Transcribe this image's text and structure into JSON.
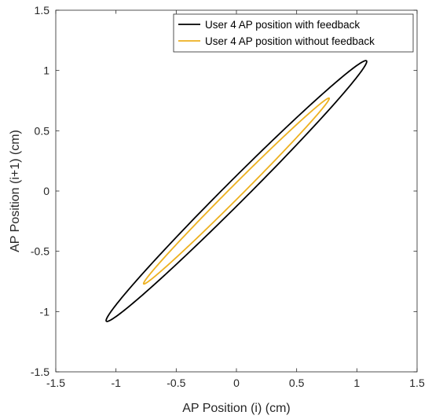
{
  "chart_data": {
    "type": "line",
    "xlabel": "AP Position (i) (cm)",
    "ylabel": "AP Position (i+1) (cm)",
    "xlim": [
      -1.5,
      1.5
    ],
    "ylim": [
      -1.5,
      1.5
    ],
    "xticks": [
      -1.5,
      -1,
      -0.5,
      0,
      0.5,
      1,
      1.5
    ],
    "yticks": [
      -1.5,
      -1,
      -0.5,
      0,
      0.5,
      1,
      1.5
    ],
    "xtick_labels": [
      "-1.5",
      "-1",
      "-0.5",
      "0",
      "0.5",
      "1",
      "1.5"
    ],
    "ytick_labels": [
      "-1.5",
      "-1",
      "-0.5",
      "0",
      "0.5",
      "1",
      "1.5"
    ],
    "grid": false,
    "legend_position": "top-right",
    "series": [
      {
        "name": "User 4 AP position with feedback",
        "color": "#000000",
        "shape": "ellipse",
        "center": [
          0,
          0
        ],
        "major_axis_angle_deg": 45,
        "endpoints": [
          [
            -1.08,
            -1.08
          ],
          [
            1.08,
            1.08
          ]
        ],
        "semi_minor": 0.09
      },
      {
        "name": "User 4 AP position without feedback",
        "color": "#EDB120",
        "shape": "ellipse",
        "center": [
          0,
          0
        ],
        "major_axis_angle_deg": 45,
        "endpoints": [
          [
            -0.77,
            -0.77
          ],
          [
            0.77,
            0.77
          ]
        ],
        "semi_minor": 0.05
      }
    ]
  }
}
